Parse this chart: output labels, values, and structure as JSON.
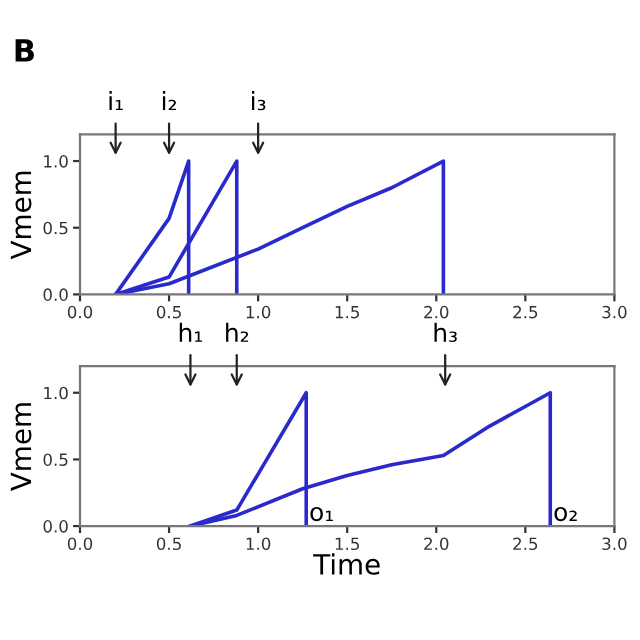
{
  "chart_data": [
    {
      "type": "line",
      "ylabel": "Vmem",
      "xlim": [
        0,
        3
      ],
      "ylim": [
        0,
        1.2
      ],
      "xticks": [
        {
          "value": 0,
          "label": "0.0"
        },
        {
          "value": 0.5,
          "label": "0.5"
        },
        {
          "value": 1,
          "label": "1.0"
        },
        {
          "value": 1.5,
          "label": "1.5"
        },
        {
          "value": 2,
          "label": "2.0"
        },
        {
          "value": 2.5,
          "label": "2.5"
        },
        {
          "value": 3,
          "label": "3.0"
        }
      ],
      "yticks": [
        {
          "value": 0,
          "label": "0.0"
        },
        {
          "value": 0.5,
          "label": "0.5"
        },
        {
          "value": 1,
          "label": "1.0"
        }
      ],
      "annotations": [
        "B",
        "i₁",
        "i₂",
        "i₃"
      ],
      "series": [
        {
          "color": "#2a2acc",
          "x": [
            0.2,
            0.5,
            0.61,
            0.61
          ],
          "values": [
            0,
            0.57,
            1.0,
            0
          ]
        },
        {
          "color": "#2a2acc",
          "x": [
            0.2,
            0.5,
            0.88,
            0.88
          ],
          "values": [
            0,
            0.13,
            1.0,
            0
          ]
        },
        {
          "color": "#2a2acc",
          "x": [
            0.2,
            0.5,
            1.0,
            1.25,
            1.5,
            1.75,
            2.04,
            2.04
          ],
          "values": [
            0,
            0.08,
            0.34,
            0.5,
            0.66,
            0.8,
            1.0,
            0
          ]
        }
      ]
    },
    {
      "type": "line",
      "ylabel": "Vmem",
      "xlabel": "Time",
      "xlim": [
        0,
        3
      ],
      "ylim": [
        0,
        1.2
      ],
      "xticks": [
        {
          "value": 0,
          "label": "0.0"
        },
        {
          "value": 0.5,
          "label": "0.5"
        },
        {
          "value": 1,
          "label": "1.0"
        },
        {
          "value": 1.5,
          "label": "1.5"
        },
        {
          "value": 2,
          "label": "2.0"
        },
        {
          "value": 2.5,
          "label": "2.5"
        },
        {
          "value": 3,
          "label": "3.0"
        }
      ],
      "yticks": [
        {
          "value": 0,
          "label": "0.0"
        },
        {
          "value": 0.5,
          "label": "0.5"
        },
        {
          "value": 1,
          "label": "1.0"
        }
      ],
      "annotations": [
        "h₁",
        "h₂",
        "h₃",
        {
          "text": "o₁",
          "x": 1.27,
          "y": 0
        },
        {
          "text": "o₂",
          "x": 2.64,
          "y": 0
        }
      ],
      "series": [
        {
          "color": "#2a2acc",
          "x": [
            0.62,
            0.88,
            1.27,
            1.27
          ],
          "values": [
            0,
            0.12,
            1.0,
            0
          ]
        },
        {
          "color": "#2a2acc",
          "x": [
            0.62,
            0.88,
            1.25,
            1.5,
            1.75,
            2.04,
            2.3,
            2.64,
            2.64
          ],
          "values": [
            0,
            0.08,
            0.28,
            0.38,
            0.46,
            0.53,
            0.75,
            1.0,
            0
          ]
        }
      ]
    }
  ]
}
